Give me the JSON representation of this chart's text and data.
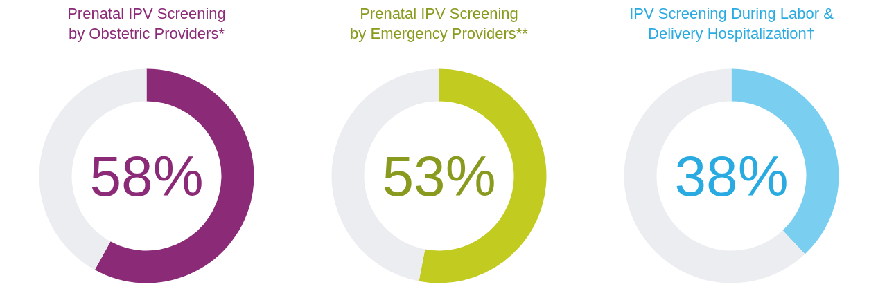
{
  "chart_data": [
    {
      "type": "donut",
      "title": "Prenatal IPV Screening\nby Obstetric Providers*",
      "categories": [
        null,
        null
      ],
      "values": [
        58,
        42
      ],
      "colors": [
        "#8b2a77",
        "#ecedf1"
      ],
      "value_labels": [
        "58%",
        null
      ]
    },
    {
      "type": "donut",
      "title": "Prenatal IPV Screening\nby Emergency Providers**",
      "categories": [
        null,
        null
      ],
      "values": [
        53,
        47
      ],
      "colors": [
        "#c2cb1f",
        "#ecedf1"
      ],
      "value_labels": [
        "53%",
        null
      ]
    },
    {
      "type": "donut",
      "title": "IPV Screening During Labor &\nDelivery Hospitalization†",
      "categories": [
        null,
        null
      ],
      "values": [
        38,
        62
      ],
      "colors": [
        "#7acff0",
        "#ecedf1"
      ],
      "value_labels": [
        "38%",
        null
      ]
    }
  ]
}
